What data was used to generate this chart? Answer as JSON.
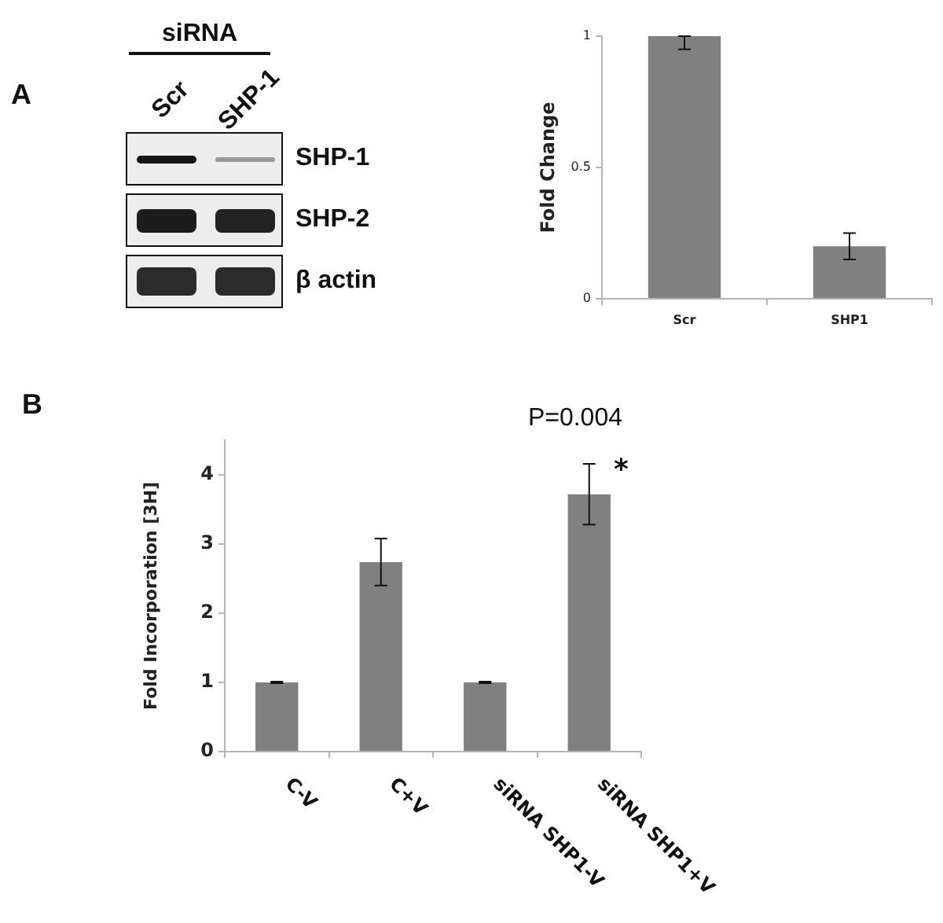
{
  "chart_data": [
    {
      "type": "other",
      "title": "A",
      "xlabel": "siRNA",
      "categories": [
        "Scr",
        "SHP-1"
      ],
      "y_categories": [
        "SHP-1",
        "SHP-2",
        "β actin"
      ]
    },
    {
      "type": "bar",
      "ylabel": "Fold Change",
      "categories": [
        "Scr",
        "SHP1"
      ],
      "values": [
        1,
        0.2
      ],
      "errors": [
        [
          0.95,
          1
        ],
        0.05
      ],
      "color": "#808080",
      "ylim": [
        0,
        1
      ],
      "yticks": [
        0,
        0.5,
        1
      ]
    },
    {
      "type": "bar",
      "title": "B",
      "ylabel": "Fold Incorporation [3H]",
      "categories": [
        "C-V",
        "C+V",
        "siRNA SHP1-V",
        "siRNA SHP1+V"
      ],
      "values": [
        1,
        2.74,
        1,
        3.72
      ],
      "errors": [
        0.01,
        0.34,
        0.01,
        0.44
      ],
      "color": "#808080",
      "ylim": [
        0,
        4.5
      ],
      "yticks": [
        0,
        1,
        2,
        3,
        4
      ],
      "annotations": [
        "P=0.004",
        {
          "text": "*",
          "x": "siRNA SHP1+V",
          "y": 4.16
        }
      ]
    }
  ]
}
